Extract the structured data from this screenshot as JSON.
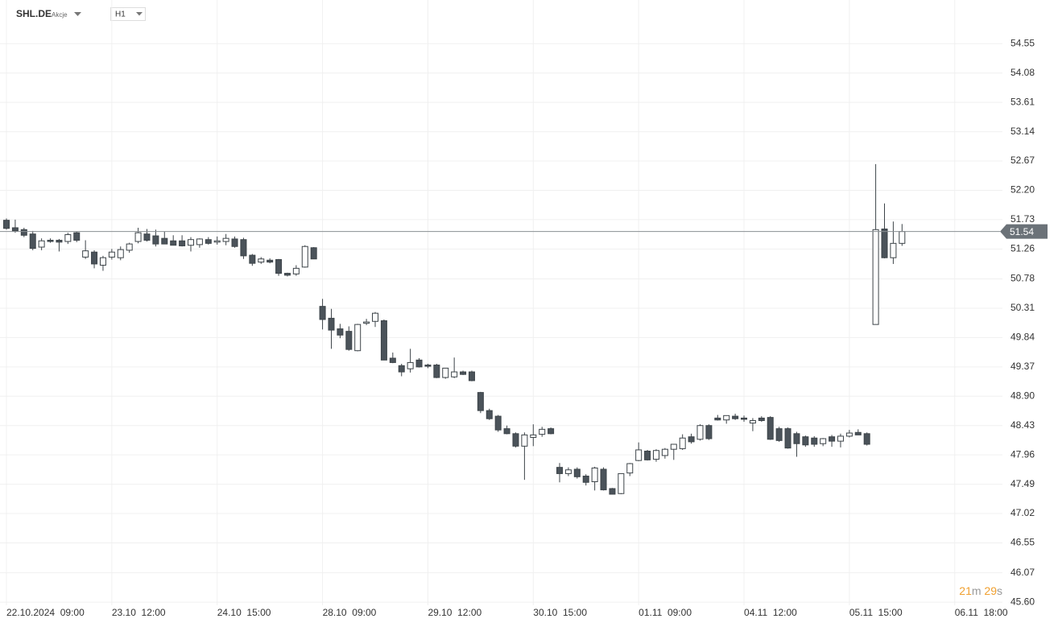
{
  "chart_data": {
    "type": "candlestick",
    "title": "SHL.DE",
    "subtitle": "Akcje",
    "interval": "H1",
    "last_price": 51.54,
    "timer": {
      "minutes": 21,
      "minutes_unit": "m",
      "seconds": 29,
      "seconds_unit": "s"
    },
    "categories": [
      "22.10.2024  09:00",
      null,
      null,
      null,
      null,
      null,
      null,
      null,
      null,
      null,
      null,
      null,
      "23.10  12:00",
      null,
      null,
      null,
      null,
      null,
      null,
      null,
      null,
      null,
      null,
      null,
      "24.10  15:00",
      null,
      null,
      null,
      null,
      null,
      null,
      null,
      null,
      null,
      null,
      null,
      "28.10  09:00",
      null,
      null,
      null,
      null,
      null,
      null,
      null,
      null,
      null,
      null,
      null,
      "29.10  12:00",
      null,
      null,
      null,
      null,
      null,
      null,
      null,
      null,
      null,
      null,
      null,
      "30.10  15:00",
      null,
      null,
      null,
      null,
      null,
      null,
      null,
      null,
      null,
      null,
      null,
      "01.11  09:00",
      null,
      null,
      null,
      null,
      null,
      null,
      null,
      null,
      null,
      null,
      null,
      "04.11  12:00",
      null,
      null,
      null,
      null,
      null,
      null,
      null,
      null,
      null,
      null,
      null,
      "05.11  15:00",
      null,
      null,
      null,
      null,
      null,
      null,
      null,
      null,
      null,
      null,
      null,
      "06.11  18:00"
    ],
    "open": [
      51.72,
      51.6,
      51.57,
      51.5,
      51.29,
      51.4,
      51.4,
      51.38,
      51.52,
      51.13,
      51.21,
      51.0,
      51.13,
      51.12,
      51.24,
      51.38,
      51.5,
      51.47,
      51.43,
      51.39,
      51.39,
      51.32,
      51.33,
      51.41,
      51.37,
      51.38,
      51.42,
      51.41,
      51.16,
      51.05,
      51.08,
      51.09,
      50.87,
      50.86,
      50.97,
      51.28,
      50.34,
      50.15,
      49.98,
      49.94,
      49.63,
      50.07,
      50.1,
      50.11,
      49.51,
      49.39,
      49.34,
      49.48,
      49.4,
      49.4,
      49.2,
      49.21,
      49.29,
      49.29,
      48.96,
      48.67,
      48.58,
      48.38,
      48.3,
      48.1,
      48.24,
      48.29,
      48.38,
      47.76,
      47.66,
      47.73,
      47.62,
      47.53,
      47.73,
      47.42,
      47.34,
      47.67,
      47.87,
      48.02,
      47.89,
      47.95,
      48.05,
      48.06,
      48.25,
      48.21,
      48.43,
      48.55,
      48.52,
      48.58,
      48.55,
      48.47,
      48.55,
      48.56,
      48.38,
      48.38,
      48.3,
      48.25,
      48.23,
      48.14,
      48.25,
      48.18,
      48.26,
      48.32,
      48.3,
      50.05,
      51.58,
      51.12,
      51.35,
      null,
      null,
      null,
      null,
      null,
      null
    ],
    "high": [
      51.75,
      51.73,
      51.6,
      51.55,
      51.43,
      51.43,
      51.42,
      51.52,
      51.54,
      51.4,
      51.24,
      51.15,
      51.26,
      51.3,
      51.36,
      51.6,
      51.58,
      51.57,
      51.54,
      51.48,
      51.48,
      51.45,
      51.43,
      51.45,
      51.46,
      51.5,
      51.46,
      51.44,
      51.18,
      51.13,
      51.11,
      51.1,
      50.88,
      51.0,
      51.32,
      51.29,
      50.46,
      50.3,
      50.06,
      50.02,
      50.06,
      50.14,
      50.25,
      50.13,
      49.6,
      49.42,
      49.66,
      49.51,
      49.42,
      49.42,
      49.35,
      49.52,
      49.31,
      49.31,
      48.97,
      48.7,
      48.6,
      48.43,
      48.32,
      48.32,
      48.45,
      48.41,
      48.4,
      47.83,
      47.76,
      47.76,
      47.65,
      47.77,
      47.76,
      47.43,
      47.66,
      47.83,
      48.16,
      48.04,
      48.05,
      48.07,
      48.1,
      48.29,
      48.3,
      48.45,
      48.45,
      48.6,
      48.59,
      48.62,
      48.59,
      48.55,
      48.58,
      48.58,
      48.41,
      48.4,
      48.33,
      48.27,
      48.26,
      48.23,
      48.28,
      48.3,
      48.36,
      48.37,
      48.32,
      52.62,
      51.99,
      51.7,
      51.66,
      null,
      null,
      null,
      null,
      null,
      null
    ],
    "low": [
      51.57,
      51.52,
      51.45,
      51.24,
      51.24,
      51.36,
      51.22,
      51.34,
      51.37,
      51.1,
      50.95,
      50.91,
      51.09,
      51.08,
      51.2,
      51.35,
      51.38,
      51.3,
      51.34,
      51.32,
      51.3,
      51.22,
      51.28,
      51.33,
      51.33,
      51.32,
      51.28,
      51.1,
      50.99,
      51.02,
      51.03,
      50.83,
      50.82,
      50.83,
      50.96,
      51.1,
      49.97,
      49.66,
      49.83,
      49.63,
      49.62,
      50.04,
      50.01,
      49.48,
      49.43,
      49.22,
      49.28,
      49.36,
      49.35,
      49.19,
      49.18,
      49.19,
      49.24,
      49.14,
      48.63,
      48.52,
      48.33,
      48.29,
      48.08,
      47.56,
      48.1,
      48.25,
      48.29,
      47.52,
      47.62,
      47.58,
      47.47,
      47.39,
      47.39,
      47.33,
      47.33,
      47.62,
      47.86,
      47.87,
      47.85,
      47.9,
      47.88,
      48.04,
      48.14,
      48.19,
      48.2,
      48.51,
      48.46,
      48.52,
      48.49,
      48.34,
      48.49,
      48.2,
      48.17,
      48.06,
      47.93,
      48.09,
      48.09,
      48.1,
      48.09,
      48.08,
      48.24,
      48.29,
      48.11,
      50.05,
      51.11,
      51.02,
      51.31,
      null,
      null,
      null,
      null,
      null,
      null
    ],
    "close": [
      51.59,
      51.55,
      51.48,
      51.27,
      51.39,
      51.38,
      51.37,
      51.49,
      51.4,
      51.23,
      51.02,
      51.12,
      51.21,
      51.25,
      51.34,
      51.52,
      51.4,
      51.34,
      51.34,
      51.32,
      51.31,
      51.41,
      51.42,
      51.35,
      51.39,
      51.43,
      51.3,
      51.15,
      51.03,
      51.1,
      51.05,
      50.87,
      50.84,
      50.95,
      51.3,
      51.1,
      50.13,
      49.96,
      49.88,
      49.65,
      50.05,
      50.09,
      50.23,
      49.48,
      49.44,
      49.29,
      49.44,
      49.37,
      49.38,
      49.2,
      49.35,
      49.29,
      49.25,
      49.15,
      48.67,
      48.54,
      48.36,
      48.3,
      48.1,
      48.28,
      48.28,
      48.37,
      48.3,
      47.66,
      47.72,
      47.61,
      47.52,
      47.75,
      47.4,
      47.33,
      47.66,
      47.82,
      48.04,
      47.88,
      48.03,
      48.05,
      48.13,
      48.23,
      48.17,
      48.43,
      48.22,
      48.52,
      48.59,
      48.54,
      48.53,
      48.51,
      48.51,
      48.21,
      48.19,
      48.07,
      48.14,
      48.12,
      48.13,
      48.22,
      48.18,
      48.26,
      48.31,
      48.28,
      48.13,
      51.57,
      51.12,
      51.35,
      51.54,
      null,
      null,
      null,
      null,
      null,
      null
    ],
    "up_color": "#ffffff",
    "down_color": "#4b535a",
    "ylim": [
      45.55,
      55.25
    ],
    "yticks": [
      54.55,
      54.08,
      53.61,
      53.14,
      52.67,
      {
        "value": 52.2,
        "label": "52.20"
      },
      51.73,
      51.26,
      50.78,
      50.31,
      49.84,
      49.37,
      {
        "value": 48.9,
        "label": "48.90"
      },
      48.43,
      47.96,
      47.49,
      47.02,
      46.55,
      46.07,
      {
        "value": 45.6,
        "label": "45.60"
      }
    ],
    "grid": true
  }
}
